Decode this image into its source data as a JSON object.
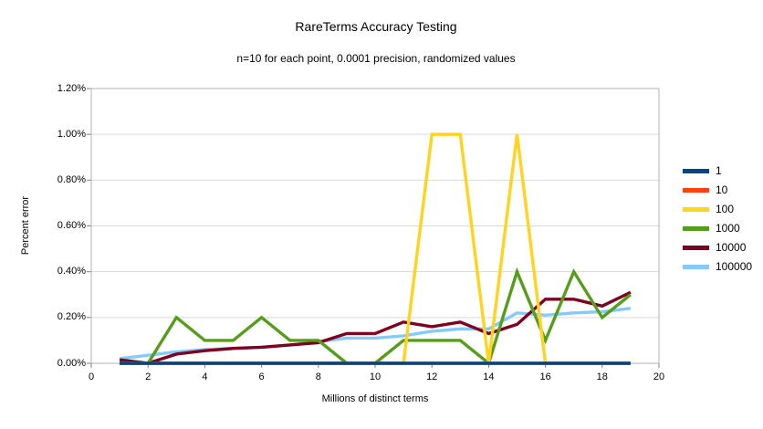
{
  "chart_data": {
    "type": "line",
    "title": "RareTerms Accuracy Testing",
    "subtitle": "n=10 for each point, 0.0001 precision, randomized values",
    "xlabel": "Millions of distinct terms",
    "ylabel": "Percent error",
    "xlim": [
      0,
      20
    ],
    "ylim": [
      0,
      1.2
    ],
    "x_ticks": [
      "0",
      "2",
      "4",
      "6",
      "8",
      "10",
      "12",
      "14",
      "16",
      "18",
      "20"
    ],
    "y_ticks": [
      "0.00%",
      "0.20%",
      "0.40%",
      "0.60%",
      "0.80%",
      "1.00%",
      "1.20%"
    ],
    "grid": "horizontal",
    "legend_position": "right",
    "x": [
      1,
      2,
      3,
      4,
      5,
      6,
      7,
      8,
      9,
      10,
      11,
      12,
      13,
      14,
      15,
      16,
      17,
      18,
      19
    ],
    "series": [
      {
        "name": "1",
        "color": "#004586",
        "values": [
          0,
          0,
          0,
          0,
          0,
          0,
          0,
          0,
          0,
          0,
          0,
          0,
          0,
          0,
          0,
          0,
          0,
          0,
          0
        ]
      },
      {
        "name": "10",
        "color": "#FF420E",
        "values": [
          0,
          0,
          0,
          0,
          0,
          0,
          0,
          0,
          0,
          0,
          0,
          0,
          0,
          0,
          0,
          0,
          0,
          0,
          0
        ]
      },
      {
        "name": "100",
        "color": "#FFD320",
        "values": [
          0,
          0,
          0,
          0,
          0,
          0,
          0,
          0,
          0,
          0,
          0,
          1.0,
          1.0,
          0,
          1.0,
          0,
          0,
          0,
          0
        ]
      },
      {
        "name": "1000",
        "color": "#579D1C",
        "values": [
          0,
          0,
          0.2,
          0.1,
          0.1,
          0.2,
          0.1,
          0.1,
          0,
          0,
          0.1,
          0.1,
          0.1,
          0,
          0.4,
          0.1,
          0.4,
          0.2,
          0.3
        ]
      },
      {
        "name": "10000",
        "color": "#7E0021",
        "values": [
          0.015,
          0,
          0.04,
          0.055,
          0.065,
          0.07,
          0.08,
          0.09,
          0.13,
          0.13,
          0.18,
          0.16,
          0.18,
          0.13,
          0.17,
          0.28,
          0.28,
          0.25,
          0.31
        ]
      },
      {
        "name": "100000",
        "color": "#83CAFF",
        "values": [
          0.02,
          0.035,
          0.05,
          0.06,
          0.065,
          0.07,
          0.08,
          0.095,
          0.11,
          0.11,
          0.12,
          0.14,
          0.15,
          0.15,
          0.22,
          0.21,
          0.22,
          0.225,
          0.24
        ]
      }
    ],
    "plot_colors": {
      "gridline": "#d9d9d9",
      "border": "#b3b3b3",
      "tick": "#808080"
    }
  }
}
